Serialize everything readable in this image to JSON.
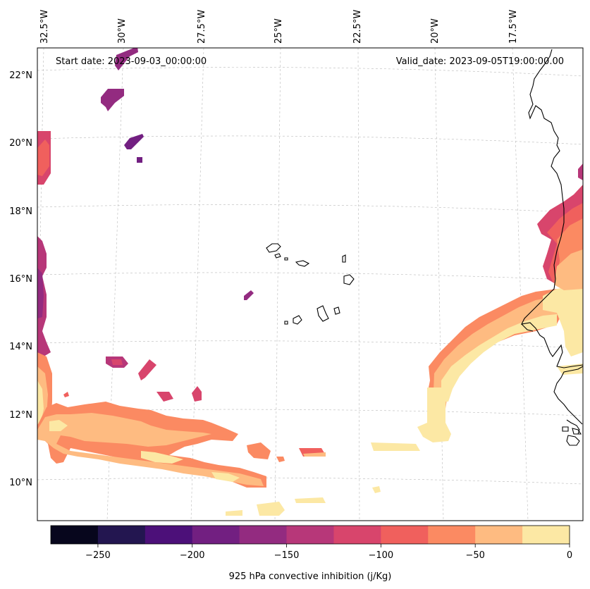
{
  "map": {
    "start_date": "Start date: 2023-09-03_00:00:00",
    "valid_date": "Valid_date: 2023-09-05T19:00:00.00",
    "lon_labels": [
      "32.5°W",
      "30°W",
      "27.5°W",
      "25°W",
      "22.5°W",
      "20°W",
      "17.5°W"
    ],
    "lat_labels": [
      "22°N",
      "20°N",
      "18°N",
      "16°N",
      "14°N",
      "12°N",
      "10°N"
    ],
    "variable": "925 hPa convective inhibition",
    "units": "j/Kg"
  },
  "colorbar": {
    "label": "925 hPa convective inhibition (j/Kg)",
    "levels": [
      -275,
      -250,
      -225,
      -200,
      -175,
      -150,
      -125,
      -100,
      -75,
      -50,
      -25,
      0
    ],
    "colors": [
      "#07061d",
      "#231650",
      "#4c1079",
      "#721f81",
      "#932b80",
      "#b73779",
      "#d8456c",
      "#f0605d",
      "#fb8a62",
      "#febb81",
      "#fce8a4"
    ],
    "tick_labels": [
      "−250",
      "−200",
      "−150",
      "−100",
      "−50",
      "0"
    ]
  },
  "chart_data": {
    "type": "heatmap",
    "title": "925 hPa convective inhibition",
    "region": "Eastern tropical Atlantic, Cape Verde Islands and West African coast",
    "lon_range_deg": [
      -33,
      -15.5
    ],
    "lat_range_deg": [
      9,
      22.5
    ],
    "colorbar_range": [
      -275,
      0
    ],
    "colorbar_unit": "j/Kg",
    "start_date": "2023-09-03_00:00:00",
    "valid_date": "2023-09-05T19:00:00.00"
  }
}
